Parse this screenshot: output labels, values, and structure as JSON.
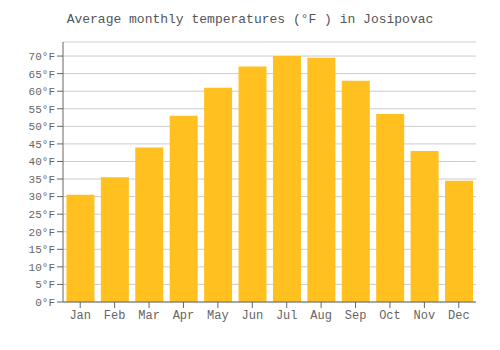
{
  "chart_data": {
    "type": "bar",
    "title": "Average monthly temperatures (°F ) in Josipovac",
    "categories": [
      "Jan",
      "Feb",
      "Mar",
      "Apr",
      "May",
      "Jun",
      "Jul",
      "Aug",
      "Sep",
      "Oct",
      "Nov",
      "Dec"
    ],
    "values": [
      30.5,
      35.5,
      44,
      53,
      61,
      67,
      70,
      69.5,
      63,
      53.5,
      43,
      34.5
    ],
    "color": "#FFC020",
    "ylim": [
      0,
      74
    ],
    "yticks": [
      {
        "value": 0,
        "label": "0°F"
      },
      {
        "value": 5,
        "label": "5°F"
      },
      {
        "value": 10,
        "label": "10°F"
      },
      {
        "value": 15,
        "label": "15°F"
      },
      {
        "value": 20,
        "label": "20°F"
      },
      {
        "value": 25,
        "label": "25°F"
      },
      {
        "value": 30,
        "label": "30°F"
      },
      {
        "value": 35,
        "label": "35°F"
      },
      {
        "value": 40,
        "label": "40°F"
      },
      {
        "value": 45,
        "label": "45°F"
      },
      {
        "value": 50,
        "label": "50°F"
      },
      {
        "value": 55,
        "label": "55°F"
      },
      {
        "value": 60,
        "label": "60°F"
      },
      {
        "value": 65,
        "label": "65°F"
      },
      {
        "value": 70,
        "label": "70°F"
      }
    ],
    "grid": true
  }
}
